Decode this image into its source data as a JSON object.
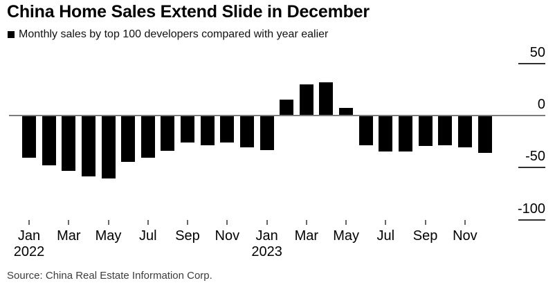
{
  "header": {
    "title": "China Home Sales Extend Slide in December",
    "legend_label": "Monthly sales by top 100 developers compared with year ealier"
  },
  "footer": {
    "source": "Source: China Real Estate Information Corp."
  },
  "colors": {
    "bar": "#000000",
    "legend_marker": "#000000",
    "zero_line": "#7b7b7b",
    "y_axis_dash": "#2f2f2f",
    "x_tick": "#666666",
    "title_text": "#000000",
    "axis_text": "#000000",
    "source_text": "#3c3c3c",
    "background": "#ffffff"
  },
  "chart_data": {
    "type": "bar",
    "title": "China Home Sales Extend Slide in December",
    "legend": "Monthly sales by top 100 developers compared with year ealier",
    "legend_position": "top-left",
    "y_axis_side": "right",
    "grid": false,
    "ylim": [
      -100,
      50
    ],
    "y_ticks": [
      50,
      0,
      -50,
      -100
    ],
    "x": [
      "Jan 2022",
      "Feb 2022",
      "Mar 2022",
      "Apr 2022",
      "May 2022",
      "Jun 2022",
      "Jul 2022",
      "Aug 2022",
      "Sep 2022",
      "Oct 2022",
      "Nov 2022",
      "Dec 2022",
      "Jan 2023",
      "Feb 2023",
      "Mar 2023",
      "Apr 2023",
      "May 2023",
      "Jun 2023",
      "Jul 2023",
      "Aug 2023",
      "Sep 2023",
      "Oct 2023",
      "Nov 2023",
      "Dec 2023"
    ],
    "values": [
      -40,
      -47,
      -52.5,
      -58,
      -59.5,
      -43.5,
      -39.5,
      -33,
      -25,
      -28,
      -25,
      -30,
      -32.5,
      14.5,
      29.5,
      31.5,
      6.5,
      -28,
      -33.5,
      -34,
      -28.5,
      -28,
      -30,
      -35
    ],
    "x_ticks": [
      {
        "month": "Jan",
        "year": "2022"
      },
      {
        "month": "Mar"
      },
      {
        "month": "May"
      },
      {
        "month": "Jul"
      },
      {
        "month": "Sep"
      },
      {
        "month": "Nov"
      },
      {
        "month": "Jan",
        "year": "2023"
      },
      {
        "month": "Mar"
      },
      {
        "month": "May"
      },
      {
        "month": "Jul"
      },
      {
        "month": "Sep"
      },
      {
        "month": "Nov"
      }
    ]
  }
}
